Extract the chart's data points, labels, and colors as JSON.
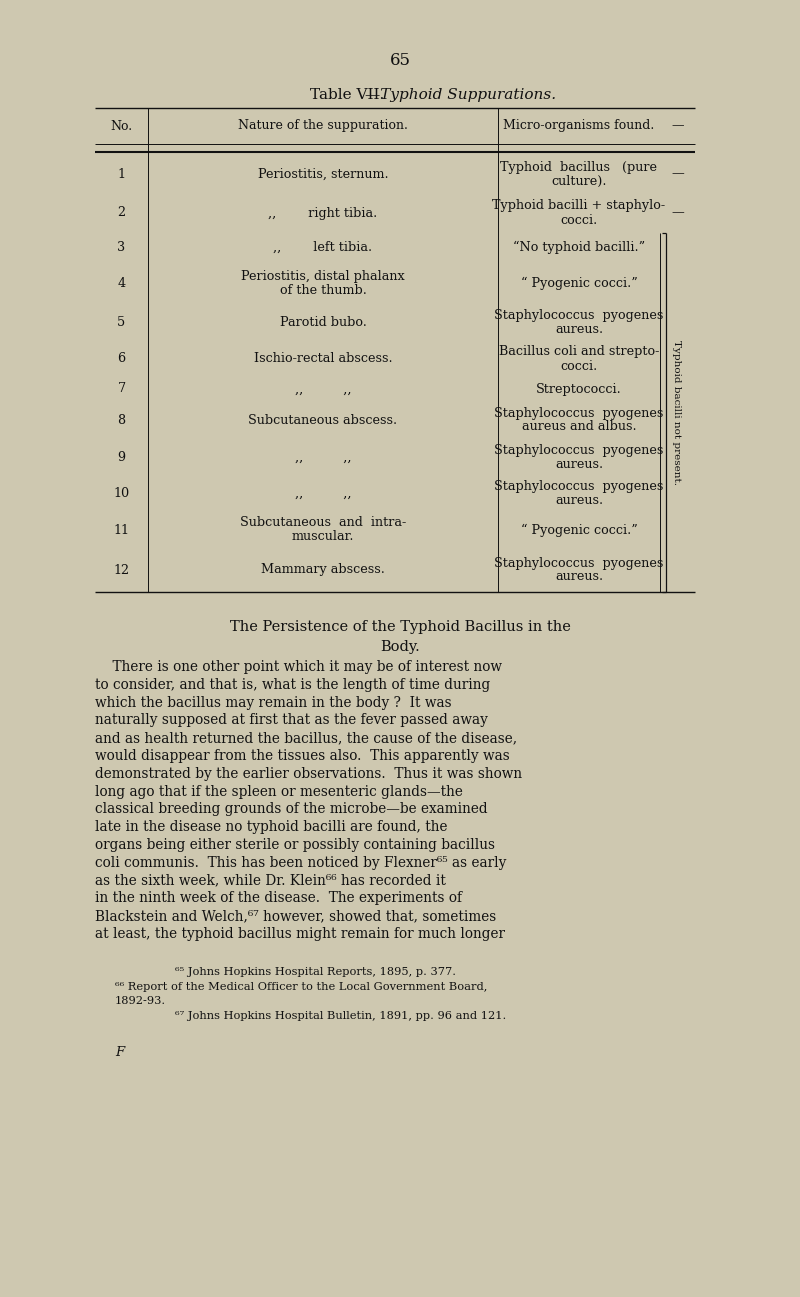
{
  "bg_color": "#cec8b0",
  "page_num": "65",
  "table_title_normal": "Table VII.",
  "table_title_italic": "—Typhoid Suppurations.",
  "col_headers": [
    "No.",
    "Nature of the suppuration.",
    "Micro-organisms found.",
    "—"
  ],
  "rows": [
    [
      "1",
      "Periostitis, sternum.",
      "Typhoid  bacillus   (pure\nculture).",
      "—"
    ],
    [
      "2",
      ",,        right tibia.",
      "Typhoid bacilli + staphylo-\ncocci.",
      "—"
    ],
    [
      "3",
      ",,        left tibia.",
      "“No typhoid bacilli.”",
      ""
    ],
    [
      "4",
      "Periostitis, distal phalanx\nof the thumb.",
      "“ Pyogenic cocci.”",
      ""
    ],
    [
      "5",
      "Parotid bubo.",
      "Staphylococcus  pyogenes\naureus.",
      ""
    ],
    [
      "6",
      "Ischio-rectal abscess.",
      "Bacillus coli and strepto-\ncocci.",
      ""
    ],
    [
      "7",
      ",,          ,,",
      "Streptococci.",
      ""
    ],
    [
      "8",
      "Subcutaneous abscess.",
      "Staphylococcus  pyogenes\naureus and albus.",
      ""
    ],
    [
      "9",
      ",,          ,,",
      "Staphylococcus  pyogenes\naureus.",
      ""
    ],
    [
      "10",
      ",,          ,,",
      "Staphylococcus  pyogenes\naureus.",
      ""
    ],
    [
      "11",
      "Subcutaneous  and  intra-\nmuscular.",
      "“ Pyogenic cocci.”",
      ""
    ],
    [
      "12",
      "Mammary abscess.",
      "Staphylococcus  pyogenes\naureus.",
      ""
    ]
  ],
  "bracket_label": "Typhoid bacilli not present.",
  "section_title_line1": "The Persistence of the Typhoid Bacillus in the",
  "section_title_line2": "Body.",
  "body_lines": [
    "    There is one other point which it may be of interest now",
    "to consider, and that is, what is the length of time during",
    "which the bacillus may remain in the body ?  It was",
    "naturally supposed at first that as the fever passed away",
    "and as health returned the bacillus, the cause of the disease,",
    "would disappear from the tissues also.  This apparently was",
    "demonstrated by the earlier observations.  Thus it was shown",
    "long ago that if the spleen or mesenteric glands—the",
    "classical breeding grounds of the microbe—be examined",
    "late in the disease no typhoid bacilli are found, the",
    "organs being either sterile or possibly containing bacillus",
    "coli communis.  This has been noticed by Flexner⁶⁵ as early",
    "as the sixth week, while Dr. Klein⁶⁶ has recorded it",
    "in the ninth week of the disease.  The experiments of",
    "Blackstein and Welch,⁶⁷ however, showed that, sometimes",
    "at least, the typhoid bacillus might remain for much longer"
  ],
  "footnote1": "⁶⁵ Johns Hopkins Hospital Reports, 1895, p. 377.",
  "footnote2a": "⁶⁶ Report of the Medical Officer to the Local Government Board,",
  "footnote2b": "1892-93.",
  "footnote3": "⁶⁷ Johns Hopkins Hospital Bulletin, 1891, pp. 96 and 121.",
  "footer_letter": "F"
}
